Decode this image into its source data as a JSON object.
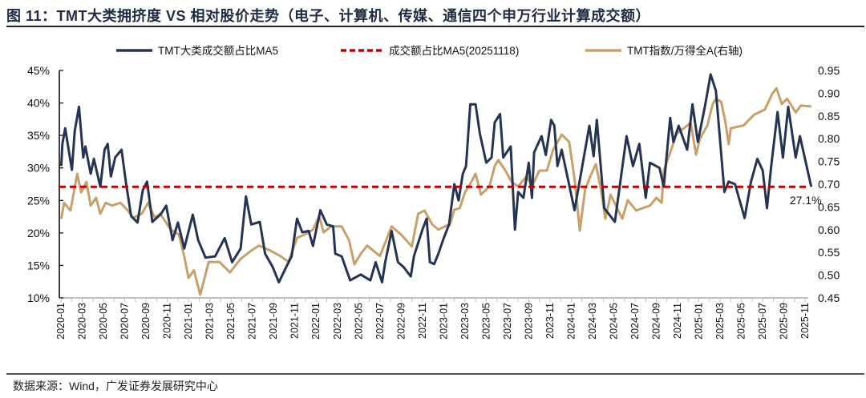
{
  "title": "图 11：TMT大类拥挤度 VS 相对股价走势（电子、计算机、传媒、通信四个申万行业计算成交额）",
  "source": "数据来源：Wind，广发证券发展研究中心",
  "colors": {
    "navy": "#263453",
    "red": "#c00000",
    "gold": "#c8a06a",
    "axis": "#bfbfbf"
  },
  "chart_data": {
    "type": "line",
    "title": "",
    "legend_position": "top",
    "grid": false,
    "x_range": [
      "2020-01",
      "2025-11"
    ],
    "x_ticks": [
      "2020-01",
      "2020-03",
      "2020-05",
      "2020-07",
      "2020-09",
      "2020-11",
      "2021-01",
      "2021-03",
      "2021-05",
      "2021-07",
      "2021-09",
      "2021-11",
      "2022-01",
      "2022-03",
      "2022-05",
      "2022-07",
      "2022-09",
      "2022-11",
      "2023-01",
      "2023-03",
      "2023-05",
      "2023-07",
      "2023-09",
      "2023-11",
      "2024-01",
      "2024-03",
      "2024-05",
      "2024-07",
      "2024-09",
      "2024-11",
      "2025-01",
      "2025-03",
      "2025-05",
      "2025-07",
      "2025-09",
      "2025-11"
    ],
    "y_left": {
      "range": [
        10,
        45
      ],
      "ticks": [
        "10%",
        "15%",
        "20%",
        "25%",
        "30%",
        "35%",
        "40%",
        "45%"
      ],
      "tick_values": [
        10,
        15,
        20,
        25,
        30,
        35,
        40,
        45
      ]
    },
    "y_right": {
      "range": [
        0.45,
        0.95
      ],
      "ticks": [
        "0.45",
        "0.50",
        "0.55",
        "0.60",
        "0.65",
        "0.70",
        "0.75",
        "0.80",
        "0.85",
        "0.90",
        "0.95"
      ],
      "tick_values": [
        0.45,
        0.5,
        0.55,
        0.6,
        0.65,
        0.7,
        0.75,
        0.8,
        0.85,
        0.9,
        0.95
      ]
    },
    "annotation": {
      "text": "27.1%",
      "x": "2025-11-18",
      "y": 27.1
    },
    "series": [
      {
        "name": "TMT大类成交额占比MA5",
        "axis": "left",
        "color": "#263453",
        "style": "solid",
        "points": [
          [
            "2020-01-02",
            30.3
          ],
          [
            "2020-01-05",
            33.7
          ],
          [
            "2020-01-13",
            36.1
          ],
          [
            "2020-02-02",
            29.7
          ],
          [
            "2020-02-10",
            35.7
          ],
          [
            "2020-02-22",
            39.4
          ],
          [
            "2020-03-04",
            31.6
          ],
          [
            "2020-03-10",
            33.3
          ],
          [
            "2020-03-25",
            29.1
          ],
          [
            "2020-04-04",
            31.4
          ],
          [
            "2020-04-22",
            27.1
          ],
          [
            "2020-05-04",
            32.8
          ],
          [
            "2020-05-13",
            33.7
          ],
          [
            "2020-05-22",
            28.7
          ],
          [
            "2020-06-04",
            31.6
          ],
          [
            "2020-06-22",
            32.8
          ],
          [
            "2020-07-04",
            27.9
          ],
          [
            "2020-07-19",
            22.6
          ],
          [
            "2020-08-07",
            21.6
          ],
          [
            "2020-08-22",
            26.6
          ],
          [
            "2020-09-04",
            27.9
          ],
          [
            "2020-09-19",
            21.7
          ],
          [
            "2020-10-13",
            22.9
          ],
          [
            "2020-10-28",
            24.2
          ],
          [
            "2020-11-16",
            18.9
          ],
          [
            "2020-12-01",
            21.6
          ],
          [
            "2020-12-19",
            17.6
          ],
          [
            "2021-01-13",
            22.8
          ],
          [
            "2021-01-28",
            18.9
          ],
          [
            "2021-02-19",
            16.2
          ],
          [
            "2021-03-16",
            16.4
          ],
          [
            "2021-04-13",
            19.2
          ],
          [
            "2021-05-04",
            15.5
          ],
          [
            "2021-05-28",
            17.6
          ],
          [
            "2021-06-13",
            25.6
          ],
          [
            "2021-06-28",
            21.3
          ],
          [
            "2021-07-22",
            21.7
          ],
          [
            "2021-08-07",
            16.8
          ],
          [
            "2021-08-28",
            14.8
          ],
          [
            "2021-09-16",
            12.4
          ],
          [
            "2021-10-07",
            14.8
          ],
          [
            "2021-10-22",
            16.4
          ],
          [
            "2021-11-07",
            22.2
          ],
          [
            "2021-11-22",
            20.1
          ],
          [
            "2021-12-10",
            20.3
          ],
          [
            "2021-12-22",
            18.0
          ],
          [
            "2022-01-13",
            23.5
          ],
          [
            "2022-02-01",
            21.3
          ],
          [
            "2022-02-19",
            21.0
          ],
          [
            "2022-02-25",
            16.8
          ],
          [
            "2022-03-13",
            16.4
          ],
          [
            "2022-04-07",
            12.7
          ],
          [
            "2022-05-07",
            13.6
          ],
          [
            "2022-06-04",
            12.7
          ],
          [
            "2022-06-19",
            15.5
          ],
          [
            "2022-07-07",
            12.4
          ],
          [
            "2022-07-16",
            15.5
          ],
          [
            "2022-08-04",
            20.3
          ],
          [
            "2022-08-22",
            15.5
          ],
          [
            "2022-09-07",
            14.8
          ],
          [
            "2022-09-28",
            13.3
          ],
          [
            "2022-10-07",
            16.4
          ],
          [
            "2022-11-01",
            20.5
          ],
          [
            "2022-11-13",
            22.2
          ],
          [
            "2022-11-22",
            15.5
          ],
          [
            "2022-12-04",
            15.2
          ],
          [
            "2022-12-16",
            16.8
          ],
          [
            "2023-01-01",
            19.2
          ],
          [
            "2023-01-16",
            21.3
          ],
          [
            "2023-02-01",
            27.5
          ],
          [
            "2023-02-13",
            25.0
          ],
          [
            "2023-02-25",
            29.1
          ],
          [
            "2023-03-04",
            30.3
          ],
          [
            "2023-03-16",
            39.8
          ],
          [
            "2023-04-01",
            39.8
          ],
          [
            "2023-04-13",
            35.3
          ],
          [
            "2023-05-01",
            30.8
          ],
          [
            "2023-05-16",
            31.6
          ],
          [
            "2023-05-25",
            37.0
          ],
          [
            "2023-06-10",
            38.3
          ],
          [
            "2023-06-19",
            31.6
          ],
          [
            "2023-07-10",
            33.3
          ],
          [
            "2023-07-22",
            20.5
          ],
          [
            "2023-08-01",
            26.3
          ],
          [
            "2023-08-16",
            25.4
          ],
          [
            "2023-09-01",
            30.8
          ],
          [
            "2023-09-10",
            25.4
          ],
          [
            "2023-09-16",
            32.4
          ],
          [
            "2023-10-07",
            34.9
          ],
          [
            "2023-10-19",
            32.0
          ],
          [
            "2023-11-04",
            37.4
          ],
          [
            "2023-11-13",
            36.5
          ],
          [
            "2023-11-22",
            30.3
          ],
          [
            "2023-12-04",
            32.8
          ],
          [
            "2024-01-10",
            23.5
          ],
          [
            "2024-02-22",
            36.5
          ],
          [
            "2024-03-04",
            31.8
          ],
          [
            "2024-03-13",
            37.4
          ],
          [
            "2024-04-04",
            23.8
          ],
          [
            "2024-05-04",
            21.7
          ],
          [
            "2024-06-07",
            34.9
          ],
          [
            "2024-06-25",
            30.3
          ],
          [
            "2024-07-13",
            33.7
          ],
          [
            "2024-08-01",
            25.4
          ],
          [
            "2024-08-13",
            30.8
          ],
          [
            "2024-09-10",
            30.0
          ],
          [
            "2024-09-22",
            27.1
          ],
          [
            "2024-10-10",
            37.7
          ],
          [
            "2024-10-19",
            34.0
          ],
          [
            "2024-11-04",
            36.5
          ],
          [
            "2024-11-28",
            32.8
          ],
          [
            "2024-12-13",
            39.8
          ],
          [
            "2024-12-28",
            34.0
          ],
          [
            "2025-01-19",
            39.8
          ],
          [
            "2025-02-04",
            44.4
          ],
          [
            "2025-02-19",
            41.9
          ],
          [
            "2025-03-13",
            26.3
          ],
          [
            "2025-03-25",
            27.9
          ],
          [
            "2025-04-13",
            27.5
          ],
          [
            "2025-05-10",
            22.3
          ],
          [
            "2025-05-28",
            27.9
          ],
          [
            "2025-06-16",
            31.4
          ],
          [
            "2025-07-01",
            29.6
          ],
          [
            "2025-07-13",
            23.8
          ],
          [
            "2025-07-25",
            30.3
          ],
          [
            "2025-08-13",
            38.6
          ],
          [
            "2025-08-28",
            31.6
          ],
          [
            "2025-09-13",
            39.4
          ],
          [
            "2025-10-04",
            31.6
          ],
          [
            "2025-10-16",
            34.9
          ],
          [
            "2025-11-18",
            27.1
          ]
        ]
      },
      {
        "name": "成交额占比MA5(20251118)",
        "axis": "left",
        "color": "#c00000",
        "style": "dashed",
        "value": 27.1
      },
      {
        "name": "TMT指数/万得全A(右轴)",
        "axis": "right",
        "color": "#c8a06a",
        "style": "solid",
        "points": [
          [
            "2020-01-02",
            0.624
          ],
          [
            "2020-01-10",
            0.659
          ],
          [
            "2020-01-28",
            0.642
          ],
          [
            "2020-02-17",
            0.723
          ],
          [
            "2020-02-28",
            0.682
          ],
          [
            "2020-03-13",
            0.705
          ],
          [
            "2020-03-25",
            0.653
          ],
          [
            "2020-04-10",
            0.67
          ],
          [
            "2020-04-22",
            0.635
          ],
          [
            "2020-05-07",
            0.659
          ],
          [
            "2020-05-25",
            0.653
          ],
          [
            "2020-06-19",
            0.659
          ],
          [
            "2020-07-10",
            0.642
          ],
          [
            "2020-07-25",
            0.626
          ],
          [
            "2020-08-19",
            0.635
          ],
          [
            "2020-09-07",
            0.659
          ],
          [
            "2020-09-26",
            0.626
          ],
          [
            "2020-10-11",
            0.635
          ],
          [
            "2020-11-11",
            0.6
          ],
          [
            "2020-12-04",
            0.589
          ],
          [
            "2020-12-19",
            0.541
          ],
          [
            "2021-01-01",
            0.494
          ],
          [
            "2021-01-16",
            0.511
          ],
          [
            "2021-02-04",
            0.457
          ],
          [
            "2021-02-28",
            0.529
          ],
          [
            "2021-03-28",
            0.529
          ],
          [
            "2021-04-28",
            0.506
          ],
          [
            "2021-05-28",
            0.536
          ],
          [
            "2021-06-28",
            0.554
          ],
          [
            "2021-07-20",
            0.565
          ],
          [
            "2021-08-22",
            0.554
          ],
          [
            "2021-09-22",
            0.541
          ],
          [
            "2021-10-13",
            0.529
          ],
          [
            "2021-11-07",
            0.582
          ],
          [
            "2021-11-28",
            0.589
          ],
          [
            "2021-12-22",
            0.6
          ],
          [
            "2022-01-10",
            0.63
          ],
          [
            "2022-01-22",
            0.594
          ],
          [
            "2022-02-13",
            0.607
          ],
          [
            "2022-03-13",
            0.607
          ],
          [
            "2022-04-04",
            0.577
          ],
          [
            "2022-04-19",
            0.524
          ],
          [
            "2022-05-07",
            0.547
          ],
          [
            "2022-05-25",
            0.565
          ],
          [
            "2022-07-01",
            0.542
          ],
          [
            "2022-08-04",
            0.607
          ],
          [
            "2022-09-01",
            0.589
          ],
          [
            "2022-10-01",
            0.563
          ],
          [
            "2022-10-19",
            0.635
          ],
          [
            "2022-11-07",
            0.642
          ],
          [
            "2022-11-28",
            0.612
          ],
          [
            "2022-12-16",
            0.6
          ],
          [
            "2023-01-04",
            0.607
          ],
          [
            "2023-01-19",
            0.612
          ],
          [
            "2023-02-01",
            0.644
          ],
          [
            "2023-02-16",
            0.647
          ],
          [
            "2023-03-01",
            0.682
          ],
          [
            "2023-03-19",
            0.705
          ],
          [
            "2023-04-01",
            0.723
          ],
          [
            "2023-04-16",
            0.677
          ],
          [
            "2023-05-10",
            0.695
          ],
          [
            "2023-05-25",
            0.74
          ],
          [
            "2023-06-05",
            0.753
          ],
          [
            "2023-06-25",
            0.73
          ],
          [
            "2023-07-13",
            0.705
          ],
          [
            "2023-08-01",
            0.695
          ],
          [
            "2023-08-25",
            0.718
          ],
          [
            "2023-09-10",
            0.695
          ],
          [
            "2023-10-01",
            0.73
          ],
          [
            "2023-10-22",
            0.73
          ],
          [
            "2023-11-10",
            0.776
          ],
          [
            "2023-12-04",
            0.809
          ],
          [
            "2023-12-25",
            0.793
          ],
          [
            "2024-01-10",
            0.712
          ],
          [
            "2024-01-25",
            0.598
          ],
          [
            "2024-02-10",
            0.688
          ],
          [
            "2024-02-25",
            0.718
          ],
          [
            "2024-03-10",
            0.744
          ],
          [
            "2024-03-25",
            0.688
          ],
          [
            "2024-04-07",
            0.624
          ],
          [
            "2024-04-22",
            0.677
          ],
          [
            "2024-05-25",
            0.624
          ],
          [
            "2024-06-10",
            0.665
          ],
          [
            "2024-07-04",
            0.642
          ],
          [
            "2024-08-13",
            0.653
          ],
          [
            "2024-09-01",
            0.67
          ],
          [
            "2024-09-16",
            0.659
          ],
          [
            "2024-09-22",
            0.73
          ],
          [
            "2024-10-13",
            0.776
          ],
          [
            "2024-10-28",
            0.811
          ],
          [
            "2024-11-19",
            0.823
          ],
          [
            "2024-12-08",
            0.835
          ],
          [
            "2024-12-23",
            0.765
          ],
          [
            "2025-01-04",
            0.8
          ],
          [
            "2025-01-25",
            0.829
          ],
          [
            "2025-02-10",
            0.876
          ],
          [
            "2025-02-19",
            0.888
          ],
          [
            "2025-03-04",
            0.881
          ],
          [
            "2025-03-16",
            0.835
          ],
          [
            "2025-03-25",
            0.788
          ],
          [
            "2025-04-01",
            0.823
          ],
          [
            "2025-05-07",
            0.829
          ],
          [
            "2025-06-07",
            0.853
          ],
          [
            "2025-07-07",
            0.864
          ],
          [
            "2025-07-28",
            0.899
          ],
          [
            "2025-08-10",
            0.911
          ],
          [
            "2025-08-25",
            0.876
          ],
          [
            "2025-09-10",
            0.888
          ],
          [
            "2025-10-04",
            0.858
          ],
          [
            "2025-10-19",
            0.873
          ],
          [
            "2025-11-18",
            0.871
          ]
        ]
      }
    ]
  }
}
